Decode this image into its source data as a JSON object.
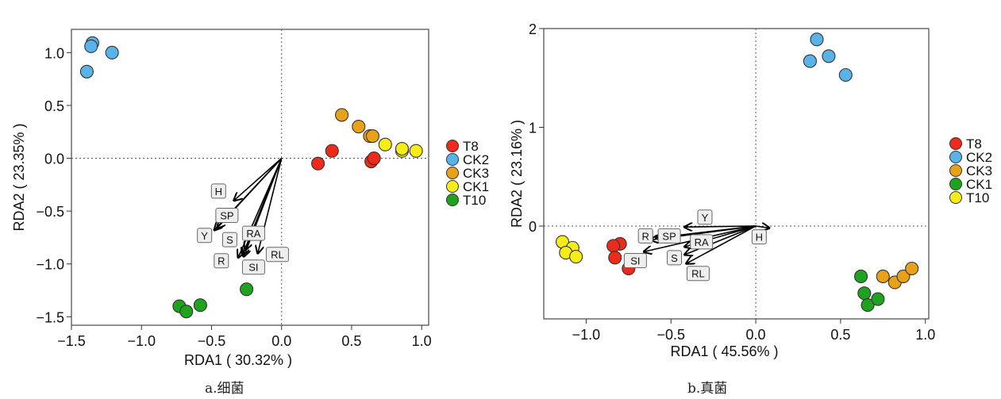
{
  "chart_data": [
    {
      "type": "scatter",
      "panel_caption": "a.细菌",
      "xlabel": "RDA1 ( 30.32% )",
      "ylabel": "RDA2 ( 23.35% )",
      "xlim": [
        -1.5,
        1.05
      ],
      "ylim": [
        -1.58,
        1.22
      ],
      "xticks": [
        -1.5,
        -1.0,
        -0.5,
        0.0,
        0.5,
        1.0
      ],
      "xtick_labels": [
        "−1.5",
        "−1.0",
        "−0.5",
        "0.0",
        "0.5",
        "1.0"
      ],
      "yticks": [
        -1.5,
        -1.0,
        -0.5,
        0.0,
        0.5,
        1.0
      ],
      "ytick_labels": [
        "−1.5",
        "−1.0",
        "−0.5",
        "0.0",
        "0.5",
        "1.0"
      ],
      "reference_lines": "dotted at x=0 and y=0",
      "legend_position": "right",
      "series": [
        {
          "name": "T8",
          "color": "#ee2a1b",
          "points": [
            [
              0.26,
              -0.05
            ],
            [
              0.36,
              0.07
            ],
            [
              0.64,
              -0.03
            ],
            [
              0.66,
              0.0
            ]
          ]
        },
        {
          "name": "CK2",
          "color": "#58b3e8",
          "points": [
            [
              -1.35,
              1.09
            ],
            [
              -1.36,
              1.06
            ],
            [
              -1.21,
              1.0
            ],
            [
              -1.39,
              0.82
            ]
          ]
        },
        {
          "name": "CK3",
          "color": "#e8a21a",
          "points": [
            [
              0.43,
              0.41
            ],
            [
              0.55,
              0.3
            ],
            [
              0.63,
              0.21
            ],
            [
              0.65,
              0.21
            ]
          ]
        },
        {
          "name": "CK1",
          "color": "#f5ec18",
          "points": [
            [
              0.74,
              0.13
            ],
            [
              0.86,
              0.07
            ],
            [
              0.86,
              0.09
            ],
            [
              0.96,
              0.07
            ]
          ]
        },
        {
          "name": "T10",
          "color": "#1fa31f",
          "points": [
            [
              -0.73,
              -1.4
            ],
            [
              -0.68,
              -1.45
            ],
            [
              -0.58,
              -1.39
            ],
            [
              -0.25,
              -1.24
            ]
          ]
        }
      ],
      "vectors": [
        {
          "label": "H",
          "x": -0.34,
          "y": -0.4,
          "lx": -0.45,
          "ly": -0.31
        },
        {
          "label": "SP",
          "x": -0.46,
          "y": -0.66,
          "lx": -0.39,
          "ly": -0.54
        },
        {
          "label": "Y",
          "x": -0.48,
          "y": -0.68,
          "lx": -0.55,
          "ly": -0.73
        },
        {
          "label": "S",
          "x": -0.28,
          "y": -0.92,
          "lx": -0.37,
          "ly": -0.77
        },
        {
          "label": "RA",
          "x": -0.26,
          "y": -0.87,
          "lx": -0.2,
          "ly": -0.71
        },
        {
          "label": "R",
          "x": -0.31,
          "y": -0.94,
          "lx": -0.43,
          "ly": -0.97
        },
        {
          "label": "SI",
          "x": -0.27,
          "y": -0.93,
          "lx": -0.2,
          "ly": -1.03
        },
        {
          "label": "RL",
          "x": -0.17,
          "y": -0.9,
          "lx": -0.03,
          "ly": -0.91
        }
      ]
    },
    {
      "type": "scatter",
      "panel_caption": "b.真菌",
      "xlabel": "RDA1 ( 45.56% )",
      "ylabel": "RDA2 ( 23.16% )",
      "xlim": [
        -1.25,
        1.02
      ],
      "ylim": [
        -0.94,
        2.0
      ],
      "xticks": [
        -1.0,
        -0.5,
        0.0,
        0.5,
        1.0
      ],
      "xtick_labels": [
        "−1.0",
        "−0.5",
        "0.0",
        "0.5",
        "1.0"
      ],
      "yticks": [
        0,
        1,
        2
      ],
      "ytick_labels": [
        "0",
        "1",
        "2"
      ],
      "reference_lines": "dotted at x=0 and y=0",
      "legend_position": "right",
      "series": [
        {
          "name": "T8",
          "color": "#ee2a1b",
          "points": [
            [
              -0.8,
              -0.18
            ],
            [
              -0.84,
              -0.2
            ],
            [
              -0.83,
              -0.32
            ],
            [
              -0.75,
              -0.43
            ]
          ]
        },
        {
          "name": "CK2",
          "color": "#58b3e8",
          "points": [
            [
              0.36,
              1.89
            ],
            [
              0.43,
              1.72
            ],
            [
              0.32,
              1.67
            ],
            [
              0.53,
              1.53
            ]
          ]
        },
        {
          "name": "CK3",
          "color": "#e8a21a",
          "points": [
            [
              0.75,
              -0.51
            ],
            [
              0.82,
              -0.57
            ],
            [
              0.87,
              -0.51
            ],
            [
              0.92,
              -0.43
            ]
          ]
        },
        {
          "name": "CK1",
          "color": "#1fa31f",
          "points": [
            [
              0.62,
              -0.51
            ],
            [
              0.64,
              -0.68
            ],
            [
              0.66,
              -0.8
            ],
            [
              0.72,
              -0.74
            ]
          ]
        },
        {
          "name": "T10",
          "color": "#f5ec18",
          "points": [
            [
              -1.14,
              -0.16
            ],
            [
              -1.08,
              -0.22
            ],
            [
              -1.12,
              -0.27
            ],
            [
              -1.06,
              -0.31
            ]
          ]
        }
      ],
      "vectors": [
        {
          "label": "H",
          "x": 0.08,
          "y": -0.02,
          "lx": 0.02,
          "ly": -0.11
        },
        {
          "label": "Y",
          "x": -0.42,
          "y": -0.01,
          "lx": -0.3,
          "ly": 0.09
        },
        {
          "label": "SP",
          "x": -0.59,
          "y": -0.12,
          "lx": -0.51,
          "ly": -0.1
        },
        {
          "label": "R",
          "x": -0.62,
          "y": -0.14,
          "lx": -0.65,
          "ly": -0.1
        },
        {
          "label": "SI",
          "x": -0.66,
          "y": -0.26,
          "lx": -0.71,
          "ly": -0.35
        },
        {
          "label": "RA",
          "x": -0.42,
          "y": -0.21,
          "lx": -0.32,
          "ly": -0.16
        },
        {
          "label": "S",
          "x": -0.42,
          "y": -0.29,
          "lx": -0.48,
          "ly": -0.32
        },
        {
          "label": "RL",
          "x": -0.41,
          "y": -0.38,
          "lx": -0.34,
          "ly": -0.48
        }
      ]
    }
  ]
}
